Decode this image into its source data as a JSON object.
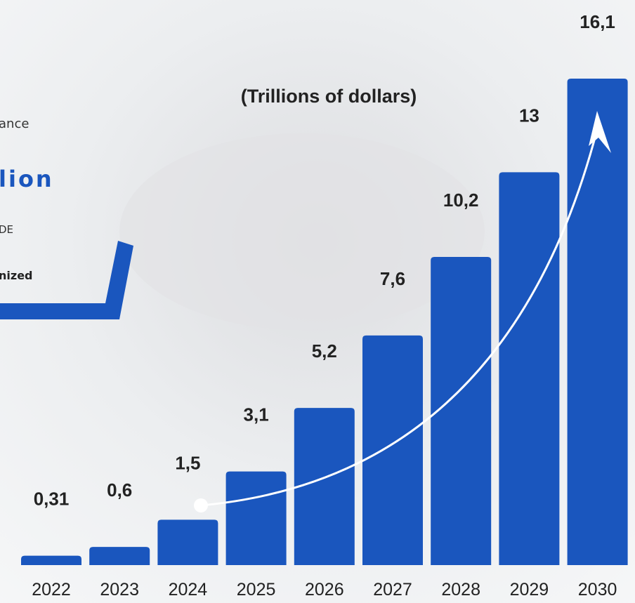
{
  "fragments": [
    "ance",
    "lion",
    "DE",
    "nized"
  ],
  "chart_data": {
    "type": "bar",
    "title": "(Trillions of dollars)",
    "categories": [
      "2022",
      "2023",
      "2024",
      "2025",
      "2026",
      "2027",
      "2028",
      "2029",
      "2030"
    ],
    "values": [
      0.31,
      0.6,
      1.5,
      3.1,
      5.2,
      7.6,
      10.2,
      13,
      16.1
    ],
    "value_labels": [
      "0,31",
      "0,6",
      "1,5",
      "3,1",
      "5,2",
      "7,6",
      "10,2",
      "13",
      "16,1"
    ],
    "color": "#1a56be"
  }
}
